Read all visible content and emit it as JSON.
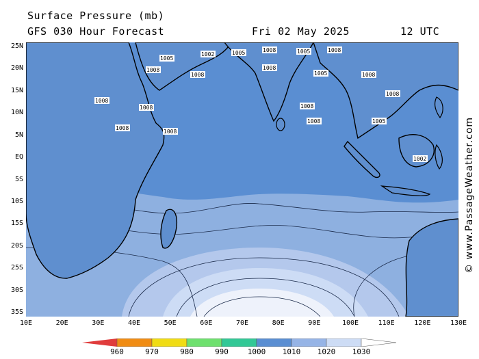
{
  "header": {
    "title": "Surface Pressure (mb)",
    "forecast": "GFS 030 Hour Forecast",
    "date": "Fri 02 May 2025",
    "time": "12 UTC"
  },
  "map": {
    "region": "Indian Ocean",
    "lon_range": [
      10,
      130
    ],
    "lat_range": [
      -35,
      25
    ],
    "lat_ticks": [
      "25N",
      "20N",
      "15N",
      "10N",
      "5N",
      "EQ",
      "5S",
      "10S",
      "15S",
      "20S",
      "25S",
      "30S",
      "35S"
    ],
    "lon_ticks": [
      "10E",
      "20E",
      "30E",
      "40E",
      "50E",
      "60E",
      "70E",
      "80E",
      "90E",
      "100E",
      "110E",
      "120E",
      "130E"
    ],
    "isobar_labels": [
      "1005",
      "1002",
      "1005",
      "1008",
      "1005",
      "1008",
      "1008",
      "1008",
      "1008",
      "1005",
      "1008",
      "1008",
      "1008",
      "1008",
      "1008",
      "1008",
      "1008",
      "1008"
    ]
  },
  "credit": "© www.PassageWeather.com",
  "colorbar": {
    "labels": [
      "960",
      "970",
      "980",
      "990",
      "1000",
      "1010",
      "1020",
      "1030"
    ],
    "colors": [
      "#e03c3c",
      "#f08c14",
      "#f0dc14",
      "#6ee06e",
      "#32c896",
      "#5a8ed2",
      "#96b4e6",
      "#cddcf5",
      "#ffffff"
    ]
  },
  "colors": {
    "ocean_low": "#5a8ed2",
    "ocean_mid": "#8eb0e0",
    "ocean_high": "#c8d8f2",
    "ocean_peak": "#eef2fb",
    "land": "#5f8fcf",
    "border": "#000000"
  }
}
